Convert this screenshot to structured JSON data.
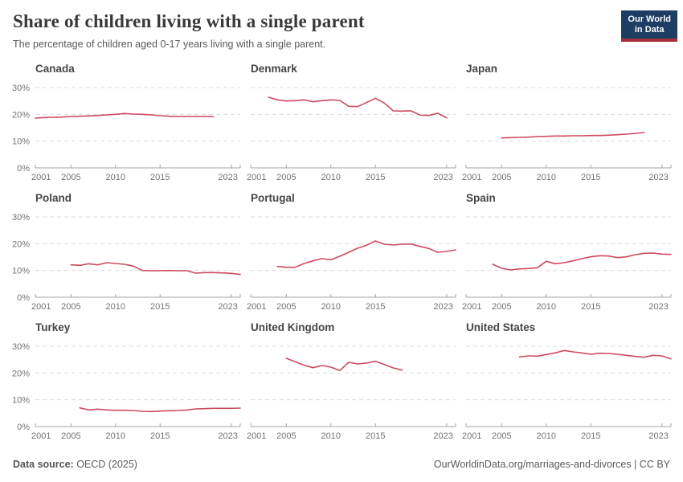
{
  "header": {
    "title": "Share of children living with a single parent",
    "subtitle": "The percentage of children aged 0-17 years living with a single parent.",
    "logo": {
      "line1": "Our World",
      "line2": "in Data",
      "bg_color": "#1d3d63",
      "bar_color": "#a82e39"
    }
  },
  "footer": {
    "source_label": "Data source:",
    "source_value": " OECD (2025)",
    "link": "OurWorldinData.org/marriages-and-divorces | CC BY"
  },
  "chart_data": {
    "type": "line",
    "line_color": "#cd4a5e",
    "grid": "horizontal dashed gridlines, light gray",
    "legend_position": "none",
    "xlabel": "",
    "ylabel": "",
    "y_unit": "%",
    "x_domain": [
      2001,
      2024
    ],
    "ylim": [
      0,
      30
    ],
    "x_ticks": [
      2001,
      2005,
      2010,
      2015,
      2023
    ],
    "y_ticks": [
      0,
      10,
      20,
      30
    ],
    "charts": [
      {
        "title": "Canada",
        "start_year": 2001,
        "values": [
          18.6,
          18.8,
          18.9,
          19.0,
          19.2,
          19.3,
          19.4,
          19.6,
          19.8,
          20.0,
          20.3,
          20.1,
          20.0,
          19.8,
          19.5,
          19.3,
          19.2,
          19.2,
          19.2,
          19.2,
          19.2
        ]
      },
      {
        "title": "Denmark",
        "start_year": 2003,
        "values": [
          26.4,
          25.4,
          25.0,
          25.1,
          25.4,
          24.7,
          25.1,
          25.4,
          25.2,
          23.0,
          22.9,
          24.4,
          26.0,
          24.2,
          21.3,
          21.2,
          21.3,
          19.7,
          19.6,
          20.4,
          18.7
        ]
      },
      {
        "title": "Japan",
        "start_year": 2005,
        "values": [
          11.2,
          11.3,
          11.4,
          11.5,
          11.7,
          11.8,
          11.9,
          11.9,
          12.0,
          12.0,
          12.1,
          12.1,
          12.2,
          12.4,
          12.6,
          12.9,
          13.2
        ]
      },
      {
        "title": "Poland",
        "start_year": 2005,
        "values": [
          12.1,
          11.9,
          12.5,
          12.1,
          12.9,
          12.6,
          12.3,
          11.6,
          10.0,
          9.9,
          9.9,
          10.0,
          9.9,
          9.9,
          9.0,
          9.2,
          9.2,
          9.1,
          8.9,
          8.5
        ]
      },
      {
        "title": "Portugal",
        "start_year": 2004,
        "values": [
          11.5,
          11.2,
          11.2,
          12.6,
          13.6,
          14.4,
          14.0,
          15.3,
          16.8,
          18.3,
          19.4,
          21.0,
          19.8,
          19.5,
          19.8,
          19.9,
          19.0,
          18.2,
          16.8,
          17.1,
          17.7
        ]
      },
      {
        "title": "Spain",
        "start_year": 2004,
        "values": [
          12.3,
          10.8,
          10.2,
          10.6,
          10.7,
          11.0,
          13.4,
          12.5,
          12.9,
          13.6,
          14.4,
          15.1,
          15.5,
          15.4,
          14.8,
          15.1,
          15.9,
          16.4,
          16.5,
          16.1,
          16.0
        ]
      },
      {
        "title": "Turkey",
        "start_year": 2006,
        "values": [
          7.0,
          6.2,
          6.5,
          6.2,
          6.1,
          6.1,
          6.0,
          5.7,
          5.6,
          5.8,
          5.9,
          6.0,
          6.2,
          6.6,
          6.7,
          6.8,
          6.8,
          6.8,
          6.9
        ]
      },
      {
        "title": "United Kingdom",
        "start_year": 2005,
        "values": [
          25.5,
          24.2,
          22.9,
          22.0,
          22.8,
          22.2,
          20.9,
          24.0,
          23.4,
          23.7,
          24.4,
          23.2,
          21.9,
          21.1
        ]
      },
      {
        "title": "United States",
        "start_year": 2007,
        "values": [
          26.0,
          26.4,
          26.3,
          26.9,
          27.5,
          28.4,
          27.9,
          27.5,
          27.0,
          27.4,
          27.3,
          27.0,
          26.6,
          26.2,
          25.9,
          26.6,
          26.4,
          25.3
        ]
      }
    ]
  }
}
